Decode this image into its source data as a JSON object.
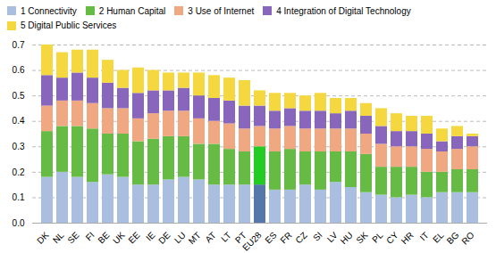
{
  "chart_data": {
    "type": "bar",
    "stacked": true,
    "categories": [
      "DK",
      "NL",
      "SE",
      "FI",
      "BE",
      "UK",
      "EE",
      "IE",
      "DE",
      "LU",
      "MT",
      "AT",
      "LT",
      "PT",
      "EU28",
      "ES",
      "FR",
      "CZ",
      "SI",
      "LV",
      "HU",
      "SK",
      "PL",
      "CY",
      "HR",
      "IT",
      "EL",
      "BG",
      "RO"
    ],
    "series": [
      {
        "name": "1 Connectivity",
        "color": "#aabfdf",
        "colors": [
          "#aabfdf",
          "#aabfdf",
          "#aabfdf",
          "#aabfdf",
          "#aabfdf",
          "#aabfdf",
          "#aabfdf",
          "#aabfdf",
          "#aabfdf",
          "#aabfdf",
          "#aabfdf",
          "#aabfdf",
          "#aabfdf",
          "#aabfdf",
          "#5577aa",
          "#aabfdf",
          "#aabfdf",
          "#aabfdf",
          "#aabfdf",
          "#aabfdf",
          "#aabfdf",
          "#aabfdf",
          "#aabfdf",
          "#aabfdf",
          "#aabfdf",
          "#aabfdf",
          "#aabfdf",
          "#aabfdf",
          "#aabfdf"
        ],
        "values": [
          0.18,
          0.2,
          0.18,
          0.16,
          0.19,
          0.18,
          0.15,
          0.15,
          0.17,
          0.18,
          0.17,
          0.15,
          0.15,
          0.15,
          0.15,
          0.13,
          0.13,
          0.15,
          0.13,
          0.16,
          0.14,
          0.12,
          0.11,
          0.1,
          0.11,
          0.1,
          0.12,
          0.12,
          0.12
        ]
      },
      {
        "name": "2 Human Capital",
        "color": "#66bb44",
        "colors": [
          "#66bb44",
          "#66bb44",
          "#66bb44",
          "#66bb44",
          "#66bb44",
          "#66bb44",
          "#66bb44",
          "#66bb44",
          "#66bb44",
          "#66bb44",
          "#66bb44",
          "#66bb44",
          "#66bb44",
          "#66bb44",
          "#22cc22",
          "#66bb44",
          "#66bb44",
          "#66bb44",
          "#66bb44",
          "#66bb44",
          "#66bb44",
          "#66bb44",
          "#66bb44",
          "#66bb44",
          "#66bb44",
          "#66bb44",
          "#66bb44",
          "#66bb44",
          "#66bb44"
        ],
        "values": [
          0.18,
          0.18,
          0.2,
          0.21,
          0.16,
          0.17,
          0.17,
          0.18,
          0.17,
          0.16,
          0.14,
          0.16,
          0.14,
          0.13,
          0.15,
          0.15,
          0.16,
          0.13,
          0.15,
          0.12,
          0.14,
          0.15,
          0.11,
          0.12,
          0.11,
          0.1,
          0.08,
          0.09,
          0.09
        ]
      },
      {
        "name": "3 Use of Internet",
        "color": "#f0a882",
        "values": [
          0.1,
          0.1,
          0.1,
          0.1,
          0.1,
          0.1,
          0.09,
          0.1,
          0.1,
          0.1,
          0.1,
          0.09,
          0.1,
          0.09,
          0.08,
          0.09,
          0.09,
          0.09,
          0.09,
          0.09,
          0.09,
          0.08,
          0.09,
          0.08,
          0.08,
          0.09,
          0.08,
          0.08,
          0.09
        ]
      },
      {
        "name": "4 Integration of Digital Technology",
        "color": "#8866bb",
        "values": [
          0.12,
          0.09,
          0.11,
          0.1,
          0.1,
          0.08,
          0.1,
          0.09,
          0.08,
          0.09,
          0.09,
          0.09,
          0.09,
          0.09,
          0.08,
          0.07,
          0.07,
          0.07,
          0.07,
          0.06,
          0.07,
          0.07,
          0.07,
          0.06,
          0.06,
          0.06,
          0.04,
          0.05,
          0.04
        ]
      },
      {
        "name": "5 Digital Public Services",
        "color": "#f5d840",
        "values": [
          0.12,
          0.1,
          0.09,
          0.11,
          0.09,
          0.07,
          0.1,
          0.08,
          0.07,
          0.06,
          0.09,
          0.09,
          0.09,
          0.1,
          0.06,
          0.07,
          0.06,
          0.06,
          0.07,
          0.06,
          0.05,
          0.05,
          0.07,
          0.07,
          0.06,
          0.07,
          0.05,
          0.04,
          0.01
        ]
      }
    ],
    "ylim": [
      0,
      0.7
    ],
    "yticks": [
      {
        "value": 0.0,
        "label": "0.0"
      },
      0.1,
      0.2,
      0.3,
      0.4,
      0.5,
      0.6,
      0.7
    ],
    "grid": true,
    "legend": "upper left"
  }
}
